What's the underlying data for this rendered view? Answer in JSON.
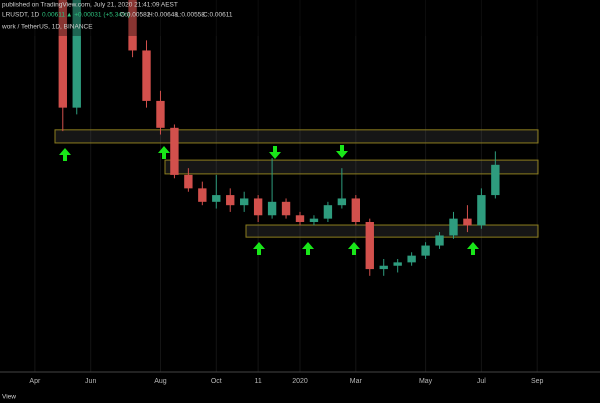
{
  "chart_data": {
    "type": "candlestick",
    "published": "published on TradingView.com, July 21, 2020 21:41:09 AEST",
    "symbol": "LRUSDT, 1D",
    "last": "0.00611",
    "change": "▲ +0.00031 (+5.34%)",
    "ohlc_texts": [
      "O:0.00582",
      "H:0.00648",
      "L:0.00558",
      "C:0.00611"
    ],
    "pair": "work / TetherUS, 1D, BINANCE",
    "footer": "View",
    "up_color": "#2e9c7e",
    "down_color": "#d2504c",
    "zone_color": "#8c7d1e",
    "ylim": [
      0,
      0.011
    ],
    "categories": [
      null,
      null,
      "Apr",
      null,
      null,
      null,
      "Jun",
      null,
      null,
      null,
      null,
      "Aug",
      null,
      null,
      null,
      "Oct",
      null,
      null,
      "11",
      null,
      null,
      "2020",
      null,
      null,
      null,
      "Mar",
      null,
      null,
      null,
      null,
      "May",
      null,
      null,
      null,
      "Jul",
      null,
      null,
      null,
      "Sep",
      null,
      null,
      null,
      null
    ],
    "candles": [
      null,
      null,
      null,
      [
        0.0125,
        0.0128,
        0.011,
        0.0112
      ],
      [
        0.0112,
        0.0114,
        0.0071,
        0.0078
      ],
      [
        0.0078,
        0.0125,
        0.0076,
        0.012
      ],
      [
        0.012,
        0.0135,
        0.0115,
        0.013
      ],
      [
        0.013,
        0.014,
        0.0125,
        0.0135
      ],
      [
        0.0135,
        0.0138,
        0.0112,
        0.0115
      ],
      [
        0.0115,
        0.0118,
        0.0093,
        0.0095
      ],
      [
        0.0095,
        0.0098,
        0.0078,
        0.008
      ],
      [
        0.008,
        0.0083,
        0.007,
        0.0072
      ],
      [
        0.0072,
        0.0073,
        0.0057,
        0.0058
      ],
      [
        0.0058,
        0.006,
        0.0053,
        0.0054
      ],
      [
        0.0054,
        0.0056,
        0.0049,
        0.005
      ],
      [
        0.005,
        0.0058,
        0.0048,
        0.0052
      ],
      [
        0.0052,
        0.0054,
        0.0047,
        0.0049
      ],
      [
        0.0049,
        0.0053,
        0.0047,
        0.0051
      ],
      [
        0.0051,
        0.0052,
        0.0044,
        0.0046
      ],
      [
        0.0046,
        0.0063,
        0.0045,
        0.005
      ],
      [
        0.005,
        0.0051,
        0.0045,
        0.0046
      ],
      [
        0.0046,
        0.0047,
        0.0043,
        0.0044
      ],
      [
        0.0044,
        0.0046,
        0.0043,
        0.0045
      ],
      [
        0.0045,
        0.005,
        0.0044,
        0.0049
      ],
      [
        0.0049,
        0.006,
        0.0048,
        0.0051
      ],
      [
        0.0051,
        0.0052,
        0.0043,
        0.0044
      ],
      [
        0.0044,
        0.0045,
        0.0028,
        0.003
      ],
      [
        0.003,
        0.0033,
        0.0028,
        0.0031
      ],
      [
        0.0031,
        0.0033,
        0.0029,
        0.0032
      ],
      [
        0.0032,
        0.0035,
        0.0031,
        0.0034
      ],
      [
        0.0034,
        0.0038,
        0.0033,
        0.0037
      ],
      [
        0.0037,
        0.0041,
        0.0036,
        0.004
      ],
      [
        0.004,
        0.0047,
        0.0039,
        0.0045
      ],
      [
        0.0045,
        0.0049,
        0.0041,
        0.0043
      ],
      [
        0.0043,
        0.0054,
        0.0042,
        0.0052
      ],
      [
        0.0052,
        0.0065,
        0.0051,
        0.0061
      ],
      null,
      null,
      null,
      null,
      null,
      null,
      null
    ],
    "zones": [
      {
        "high": 0.00714,
        "low": 0.00675
      },
      {
        "high": 0.00624,
        "low": 0.00583
      },
      {
        "high": 0.00431,
        "low": 0.00395
      }
    ]
  }
}
